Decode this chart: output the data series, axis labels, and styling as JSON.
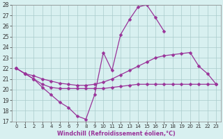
{
  "hours": [
    0,
    1,
    2,
    3,
    4,
    5,
    6,
    7,
    8,
    9,
    10,
    11,
    12,
    13,
    14,
    15,
    16,
    17,
    18,
    19,
    20,
    21,
    22,
    23
  ],
  "line1": [
    22.0,
    21.5,
    21.0,
    20.2,
    19.5,
    18.8,
    18.3,
    17.5,
    17.2,
    19.5,
    23.5,
    21.8,
    25.2,
    26.6,
    27.8,
    28.0,
    26.8,
    25.5,
    null,
    null,
    null,
    null,
    null,
    null
  ],
  "line2": [
    22.0,
    21.5,
    21.0,
    20.5,
    20.2,
    20.1,
    20.1,
    20.1,
    20.1,
    20.1,
    20.1,
    20.2,
    20.3,
    20.4,
    20.5,
    20.5,
    20.5,
    20.5,
    20.5,
    20.5,
    20.5,
    20.5,
    20.5,
    20.5
  ],
  "line3": [
    22.0,
    21.5,
    21.3,
    21.0,
    20.8,
    20.6,
    20.5,
    20.4,
    20.4,
    20.5,
    20.7,
    21.0,
    21.4,
    21.8,
    22.2,
    22.6,
    23.0,
    23.2,
    23.3,
    23.4,
    23.5,
    22.2,
    21.5,
    20.5
  ],
  "color": "#993399",
  "bg_color": "#d8f0f0",
  "grid_color": "#aacccc",
  "xlabel": "Windchill (Refroidissement éolien,°C)",
  "ylim": [
    17,
    28
  ],
  "yticks": [
    17,
    18,
    19,
    20,
    21,
    22,
    23,
    24,
    25,
    26,
    27,
    28
  ],
  "xticks": [
    0,
    1,
    2,
    3,
    4,
    5,
    6,
    7,
    8,
    9,
    10,
    11,
    12,
    13,
    14,
    15,
    16,
    17,
    18,
    19,
    20,
    21,
    22,
    23
  ],
  "figsize": [
    3.2,
    2.0
  ],
  "dpi": 100
}
